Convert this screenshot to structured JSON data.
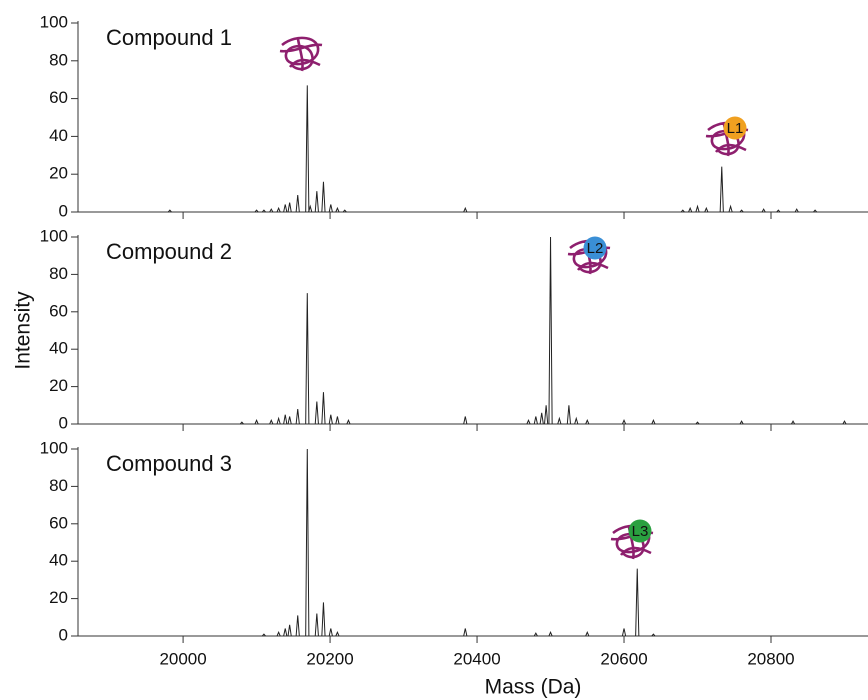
{
  "chart_data": [
    {
      "type": "spectrum",
      "title": "Compound 1",
      "color": "#222222",
      "annotation": {
        "text": "L1",
        "color": "#f0a020"
      },
      "xlim": [
        19857,
        20932
      ],
      "ylim": [
        0,
        100
      ],
      "yticks": [
        0,
        20,
        40,
        60,
        80,
        100
      ],
      "x": [
        19982,
        20100,
        20110,
        20120,
        20130,
        20139,
        20145,
        20156,
        20169,
        20173,
        20182,
        20191,
        20201,
        20210,
        20220,
        20384,
        20680,
        20690,
        20700,
        20712,
        20733,
        20745,
        20760,
        20790,
        20810,
        20835,
        20860
      ],
      "values": [
        1,
        1,
        1,
        1.5,
        2,
        4,
        5,
        9,
        67,
        3,
        11,
        16,
        4,
        2,
        1,
        2,
        1,
        2,
        3,
        2,
        24,
        3,
        1,
        1.5,
        1,
        1.5,
        1
      ]
    },
    {
      "type": "spectrum",
      "title": "Compound 2",
      "color": "#222222",
      "ylabel": "Intensity",
      "annotation": {
        "text": "L2",
        "color": "#3a8fd6"
      },
      "xlim": [
        19857,
        20932
      ],
      "ylim": [
        0,
        100
      ],
      "yticks": [
        0,
        20,
        40,
        60,
        80,
        100
      ],
      "x": [
        20080,
        20100,
        20120,
        20130,
        20139,
        20145,
        20156,
        20169,
        20182,
        20191,
        20201,
        20210,
        20225,
        20384,
        20470,
        20480,
        20488,
        20494,
        20500,
        20512,
        20525,
        20535,
        20550,
        20600,
        20640,
        20700,
        20760,
        20830,
        20900
      ],
      "values": [
        1,
        2,
        2,
        3,
        5,
        4,
        8,
        70,
        12,
        17,
        5,
        4,
        2,
        4,
        2,
        4,
        6,
        10,
        100,
        3,
        10,
        3,
        2,
        2,
        2,
        1,
        1.5,
        1.5,
        1.5
      ]
    },
    {
      "type": "spectrum",
      "title": "Compound 3",
      "color": "#222222",
      "xlabel": "Mass (Da)",
      "annotation": {
        "text": "L3",
        "color": "#2aa040"
      },
      "xlim": [
        19857,
        20932
      ],
      "ylim": [
        0,
        100
      ],
      "yticks": [
        0,
        20,
        40,
        60,
        80,
        100
      ],
      "xticks": [
        20000,
        20200,
        20400,
        20600,
        20800
      ],
      "x": [
        20110,
        20130,
        20139,
        20145,
        20156,
        20169,
        20182,
        20191,
        20201,
        20210,
        20384,
        20480,
        20500,
        20550,
        20600,
        20618,
        20640
      ],
      "values": [
        1,
        2,
        4,
        6,
        11,
        100,
        12,
        18,
        4,
        2,
        4,
        1.5,
        2,
        2,
        4,
        36,
        1
      ]
    }
  ]
}
